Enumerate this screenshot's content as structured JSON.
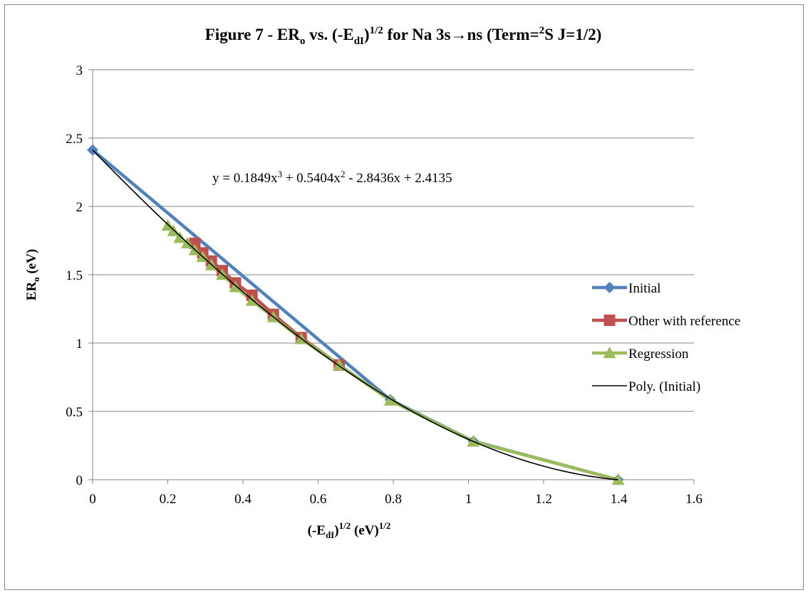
{
  "chart_data": {
    "type": "scatter",
    "title_parts": {
      "t1": "Figure 7 - ER",
      "t1_sub": "o",
      "t2": " vs. (-E",
      "t2_sub": "dI",
      "t3": ")",
      "t3_sup": "1/2",
      "t4": " for Na 3s→ns (Term=",
      "t4_sup": "2",
      "t5": "S J=1/2)"
    },
    "xlabel_parts": {
      "a": "(-E",
      "a_sub": "dI",
      "b": ")",
      "b_sup": "1/2",
      "c": " (eV)",
      "c_sup": "1/2"
    },
    "ylabel_parts": {
      "a": "ER",
      "a_sub": "o",
      "b": " (eV)"
    },
    "xlim": [
      0,
      1.6
    ],
    "ylim": [
      0,
      3
    ],
    "x_ticks": [
      "0",
      "0.2",
      "0.4",
      "0.6",
      "0.8",
      "1",
      "1.2",
      "1.4",
      "1.6"
    ],
    "y_ticks": [
      "0",
      "0.5",
      "1",
      "1.5",
      "2",
      "2.5",
      "3"
    ],
    "grid": "horizontal",
    "legend_position": "right",
    "series": [
      {
        "name": "Initial",
        "color": "#4f81bd",
        "marker": "diamond",
        "x": [
          0,
          0.792,
          1.013,
          1.398
        ],
        "y": [
          2.413,
          0.585,
          0.282,
          0.0
        ]
      },
      {
        "name": "Other with reference",
        "color": "#c0504d",
        "marker": "square",
        "x": [
          0.272,
          0.293,
          0.316,
          0.345,
          0.38,
          0.424,
          0.481,
          0.555,
          0.656
        ],
        "y": [
          1.73,
          1.66,
          1.6,
          1.53,
          1.44,
          1.35,
          1.21,
          1.04,
          0.84
        ]
      },
      {
        "name": "Regression",
        "color": "#9bbb59",
        "marker": "triangle",
        "x": [
          0.2,
          0.215,
          0.232,
          0.252,
          0.272,
          0.293,
          0.316,
          0.345,
          0.38,
          0.424,
          0.481,
          0.555,
          0.656,
          0.792,
          1.013,
          1.398
        ],
        "y": [
          1.86,
          1.82,
          1.77,
          1.73,
          1.68,
          1.63,
          1.57,
          1.5,
          1.41,
          1.31,
          1.19,
          1.03,
          0.84,
          0.58,
          0.28,
          0.0
        ]
      }
    ],
    "trendline": {
      "name": "Poly. (Initial)",
      "color": "#000000",
      "coefficients": [
        0.1849,
        0.5404,
        -2.8436,
        2.4135
      ],
      "x_range": [
        0,
        1.398
      ]
    },
    "equation": {
      "p1": "y = 0.1849x",
      "p1_sup": "3",
      "p2": " + 0.5404x",
      "p2_sup": "2",
      "p3": " - 2.8436x + 2.4135"
    }
  }
}
